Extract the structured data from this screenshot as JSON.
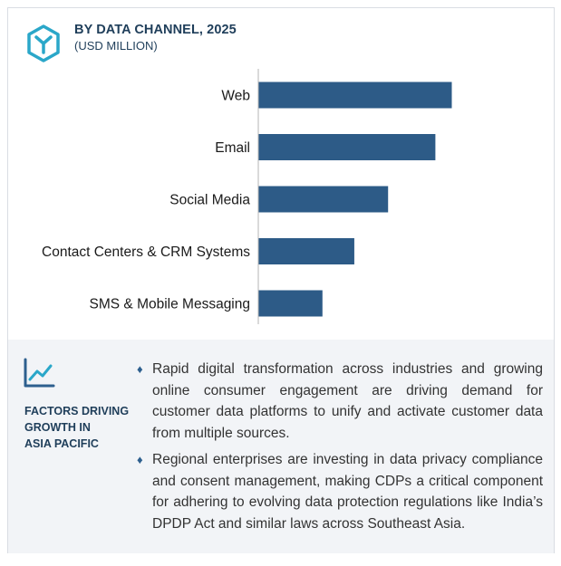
{
  "header": {
    "title": "BY DATA CHANNEL, 2025",
    "subtitle": "(USD MILLION)",
    "logo_icon": "hexagon-y-logo-icon"
  },
  "colors": {
    "bar": "#2d5b87",
    "heading": "#1f3e5a",
    "panel_bg": "#f2f4f7",
    "accent": "#2d5f8e"
  },
  "chart_data": {
    "type": "bar",
    "orientation": "horizontal",
    "categories": [
      "Web",
      "Email",
      "Social Media",
      "Contact Centers & CRM Systems",
      "SMS & Mobile Messaging"
    ],
    "values": [
      100,
      91.5,
      67,
      49.5,
      33
    ],
    "title": "BY DATA CHANNEL, 2025",
    "xlabel": "",
    "ylabel": "",
    "xlim": [
      0,
      100
    ],
    "grid": false,
    "axis_ticks_shown": false
  },
  "factors": {
    "icon": "trend-line-chart-icon",
    "heading_lines": [
      "FACTORS DRIVING",
      "GROWTH IN",
      "ASIA PACIFIC"
    ],
    "bullets": [
      "Rapid digital transformation across industries and growing online consumer engagement are driving demand for customer data platforms to unify and activate customer data from multiple sources.",
      "Regional enterprises are investing in data privacy compliance and consent management, making CDPs a critical component for adhering to evolving data protection regulations like India’s DPDP Act and similar laws across Southeast Asia."
    ]
  }
}
